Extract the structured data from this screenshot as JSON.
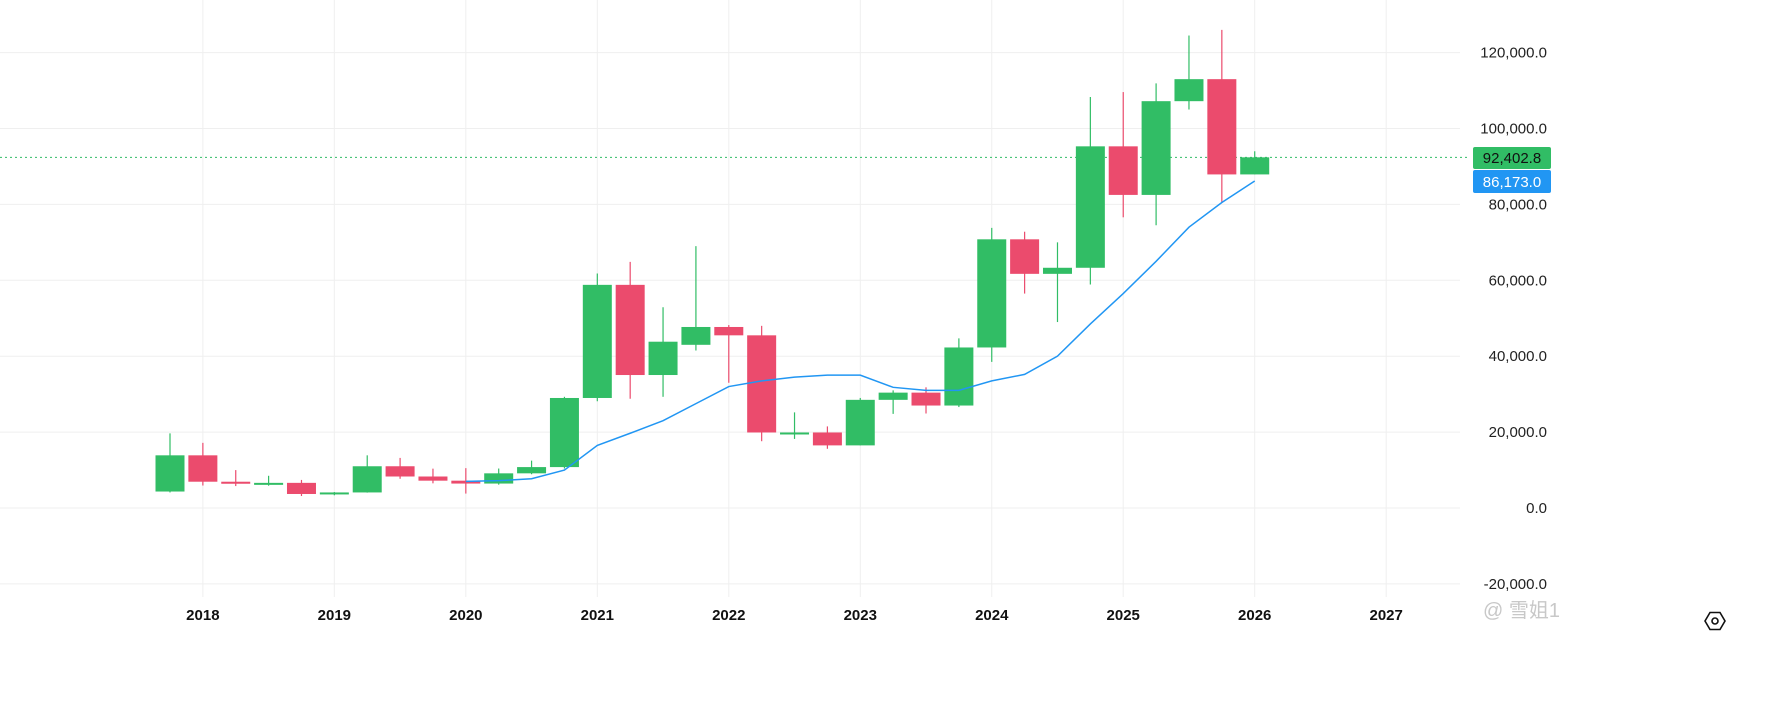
{
  "chart_data": {
    "type": "candlestick",
    "title": "",
    "xlabel": "",
    "ylabel": "",
    "ylim": [
      -20000,
      130000
    ],
    "y_ticks": [
      "120,000.0",
      "100,000.0",
      "80,000.0",
      "60,000.0",
      "40,000.0",
      "20,000.0",
      "0.0",
      "-20,000.0"
    ],
    "y_tick_values": [
      120000,
      100000,
      80000,
      60000,
      40000,
      20000,
      0,
      -20000
    ],
    "x_ticks": [
      "2018",
      "2019",
      "2020",
      "2021",
      "2022",
      "2023",
      "2024",
      "2025",
      "2026",
      "2027"
    ],
    "grid": true,
    "period": "quarterly",
    "first_period": "2017-Q4",
    "candles": [
      [
        4340,
        19666,
        4100,
        13880
      ],
      [
        13880,
        17170,
        5920,
        6926
      ],
      [
        6926,
        9990,
        5780,
        6390
      ],
      [
        6390,
        8490,
        5880,
        6625
      ],
      [
        6625,
        7400,
        3156,
        3693
      ],
      [
        3693,
        4200,
        3350,
        4100
      ],
      [
        4100,
        13880,
        4050,
        11000
      ],
      [
        11000,
        13200,
        7700,
        8300
      ],
      [
        8300,
        10370,
        6500,
        7200
      ],
      [
        7200,
        10500,
        3800,
        6440
      ],
      [
        6440,
        10400,
        6150,
        9135
      ],
      [
        9135,
        12480,
        8900,
        10780
      ],
      [
        10780,
        29300,
        10400,
        28990
      ],
      [
        28990,
        61800,
        28130,
        58800
      ],
      [
        58800,
        64850,
        28800,
        35040
      ],
      [
        35040,
        52900,
        29300,
        43820
      ],
      [
        43000,
        69000,
        41500,
        47700
      ],
      [
        47700,
        48200,
        33000,
        45500
      ],
      [
        45500,
        48000,
        17600,
        19900
      ],
      [
        19400,
        25200,
        18200,
        19900
      ],
      [
        19900,
        21500,
        15600,
        16500
      ],
      [
        16500,
        29000,
        16500,
        28500
      ],
      [
        28500,
        31000,
        24800,
        30400
      ],
      [
        30400,
        31800,
        24900,
        27000
      ],
      [
        27000,
        44700,
        26600,
        42300
      ],
      [
        42300,
        73800,
        38500,
        70800
      ],
      [
        70800,
        72800,
        56500,
        61700
      ],
      [
        61700,
        70000,
        49000,
        63300
      ],
      [
        63300,
        108300,
        58900,
        95300
      ],
      [
        95300,
        109600,
        76600,
        82500
      ],
      [
        82500,
        111900,
        74500,
        107200
      ],
      [
        107200,
        124500,
        105000,
        113000
      ],
      [
        113000,
        126000,
        80600,
        87900
      ],
      [
        87900,
        94000,
        87900,
        92402.8
      ]
    ],
    "ma_series": {
      "name": "MA",
      "start_period_index": 9,
      "values": [
        7000,
        7200,
        7700,
        10000,
        16500,
        19700,
        23000,
        27500,
        32000,
        33500,
        34500,
        35000,
        35000,
        31800,
        31000,
        31000,
        33500,
        35200,
        40000,
        48500,
        56500,
        65000,
        74000,
        80500,
        86173
      ]
    },
    "last_price_label": "92,402.8",
    "ma_label": "86,173.0",
    "colors": {
      "up": "#31bd65",
      "down": "#eb4b6d",
      "ma": "#2196f3",
      "grid": "#efefef"
    }
  },
  "watermark": "@ 雪姐1"
}
